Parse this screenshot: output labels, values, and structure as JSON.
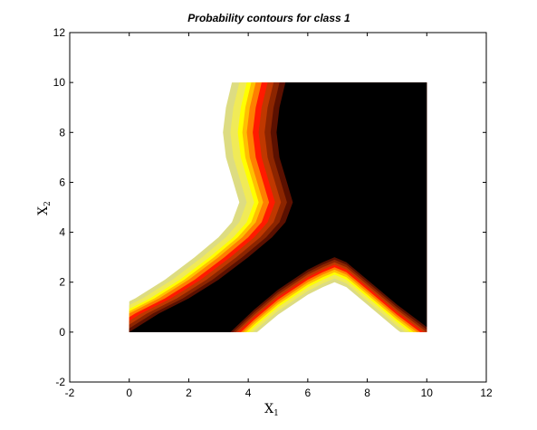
{
  "chart_data": {
    "type": "contour",
    "title": "Probability contours for class 1",
    "xlabel": {
      "base": "X",
      "subscript": "1"
    },
    "ylabel": {
      "base": "X",
      "subscript": "2"
    },
    "xlim": [
      -2,
      12
    ],
    "ylim": [
      -2,
      12
    ],
    "xticks": [
      -2,
      0,
      2,
      4,
      6,
      8,
      10,
      12
    ],
    "yticks": [
      -2,
      0,
      2,
      4,
      6,
      8,
      10,
      12
    ],
    "grid": false,
    "domain": {
      "x": [
        0,
        10
      ],
      "y": [
        0,
        10
      ]
    },
    "colormap": "hot",
    "levels": [
      {
        "color": "#000000"
      },
      {
        "color": "#5a1000"
      },
      {
        "color": "#8c2500"
      },
      {
        "color": "#c03800"
      },
      {
        "color": "#ff1a00"
      },
      {
        "color": "#ff7e00"
      },
      {
        "color": "#ffc000"
      },
      {
        "color": "#ffff00"
      },
      {
        "color": "#f0ea58"
      },
      {
        "color": "#dddc82"
      }
    ],
    "upper_boundary": [
      [
        5.25,
        10
      ],
      [
        5.05,
        9.0
      ],
      [
        4.95,
        8.0
      ],
      [
        5.05,
        7.0
      ],
      [
        5.3,
        6.0
      ],
      [
        5.5,
        5.2
      ],
      [
        5.25,
        4.4
      ],
      [
        4.8,
        3.8
      ],
      [
        4.0,
        3.0
      ],
      [
        3.0,
        2.1
      ],
      [
        2.0,
        1.35
      ],
      [
        1.0,
        0.75
      ],
      [
        0.0,
        0.0
      ]
    ],
    "lower_boundary": [
      [
        3.4,
        0.0
      ],
      [
        4.2,
        0.9
      ],
      [
        5.0,
        1.7
      ],
      [
        6.0,
        2.5
      ],
      [
        6.5,
        2.8
      ],
      [
        6.9,
        3.0
      ],
      [
        7.3,
        2.8
      ],
      [
        8.0,
        2.1
      ],
      [
        9.0,
        1.1
      ],
      [
        10.0,
        0.2
      ]
    ],
    "upper_offsets": [
      0,
      0.2,
      0.4,
      0.6,
      0.8,
      1.0,
      1.15,
      1.3,
      1.55,
      1.8
    ],
    "lower_offsets": [
      0,
      0.1,
      0.2,
      0.3,
      0.4,
      0.5,
      0.6,
      0.7,
      0.85,
      1.0
    ]
  }
}
